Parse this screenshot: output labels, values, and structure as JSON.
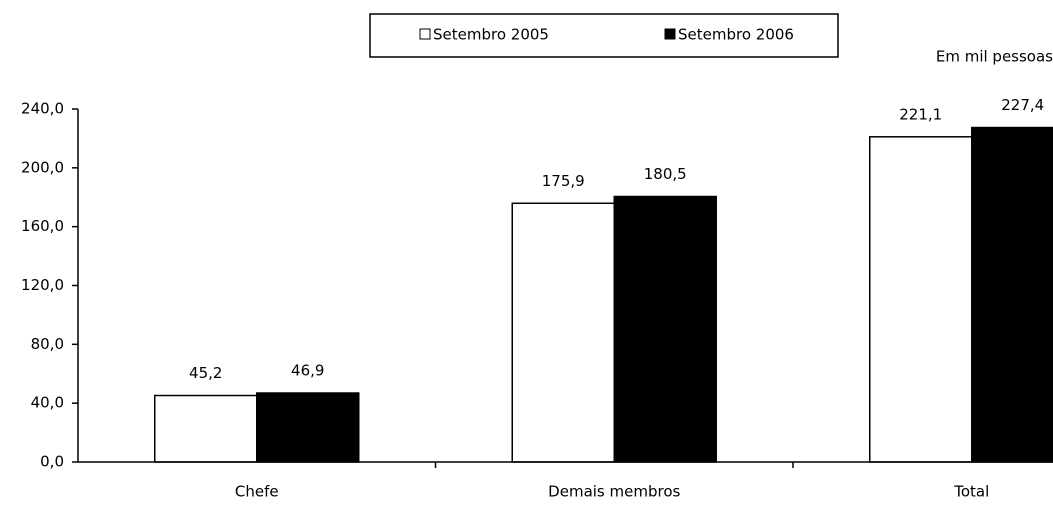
{
  "chart_data": {
    "type": "bar",
    "annotation": "Em mil pessoas",
    "categories": [
      "Chefe",
      "Demais membros",
      "Total"
    ],
    "series": [
      {
        "name": "Setembro 2005",
        "color": "#ffffff",
        "values": [
          45.2,
          175.9,
          221.1
        ],
        "value_labels": [
          "45,2",
          "175,9",
          "221,1"
        ]
      },
      {
        "name": "Setembro 2006",
        "color": "#000000",
        "values": [
          46.9,
          180.5,
          227.4
        ],
        "value_labels": [
          "46,9",
          "180,5",
          "227,4"
        ]
      }
    ],
    "ylim": [
      0,
      240
    ],
    "yticks": [
      {
        "value": 0,
        "label": "0,0"
      },
      {
        "value": 40,
        "label": "40,0"
      },
      {
        "value": 80,
        "label": "80,0"
      },
      {
        "value": 120,
        "label": "120,0"
      },
      {
        "value": 160,
        "label": "160,0"
      },
      {
        "value": 200,
        "label": "200,0"
      },
      {
        "value": 240,
        "label": "240,0"
      }
    ],
    "legend": "top"
  }
}
